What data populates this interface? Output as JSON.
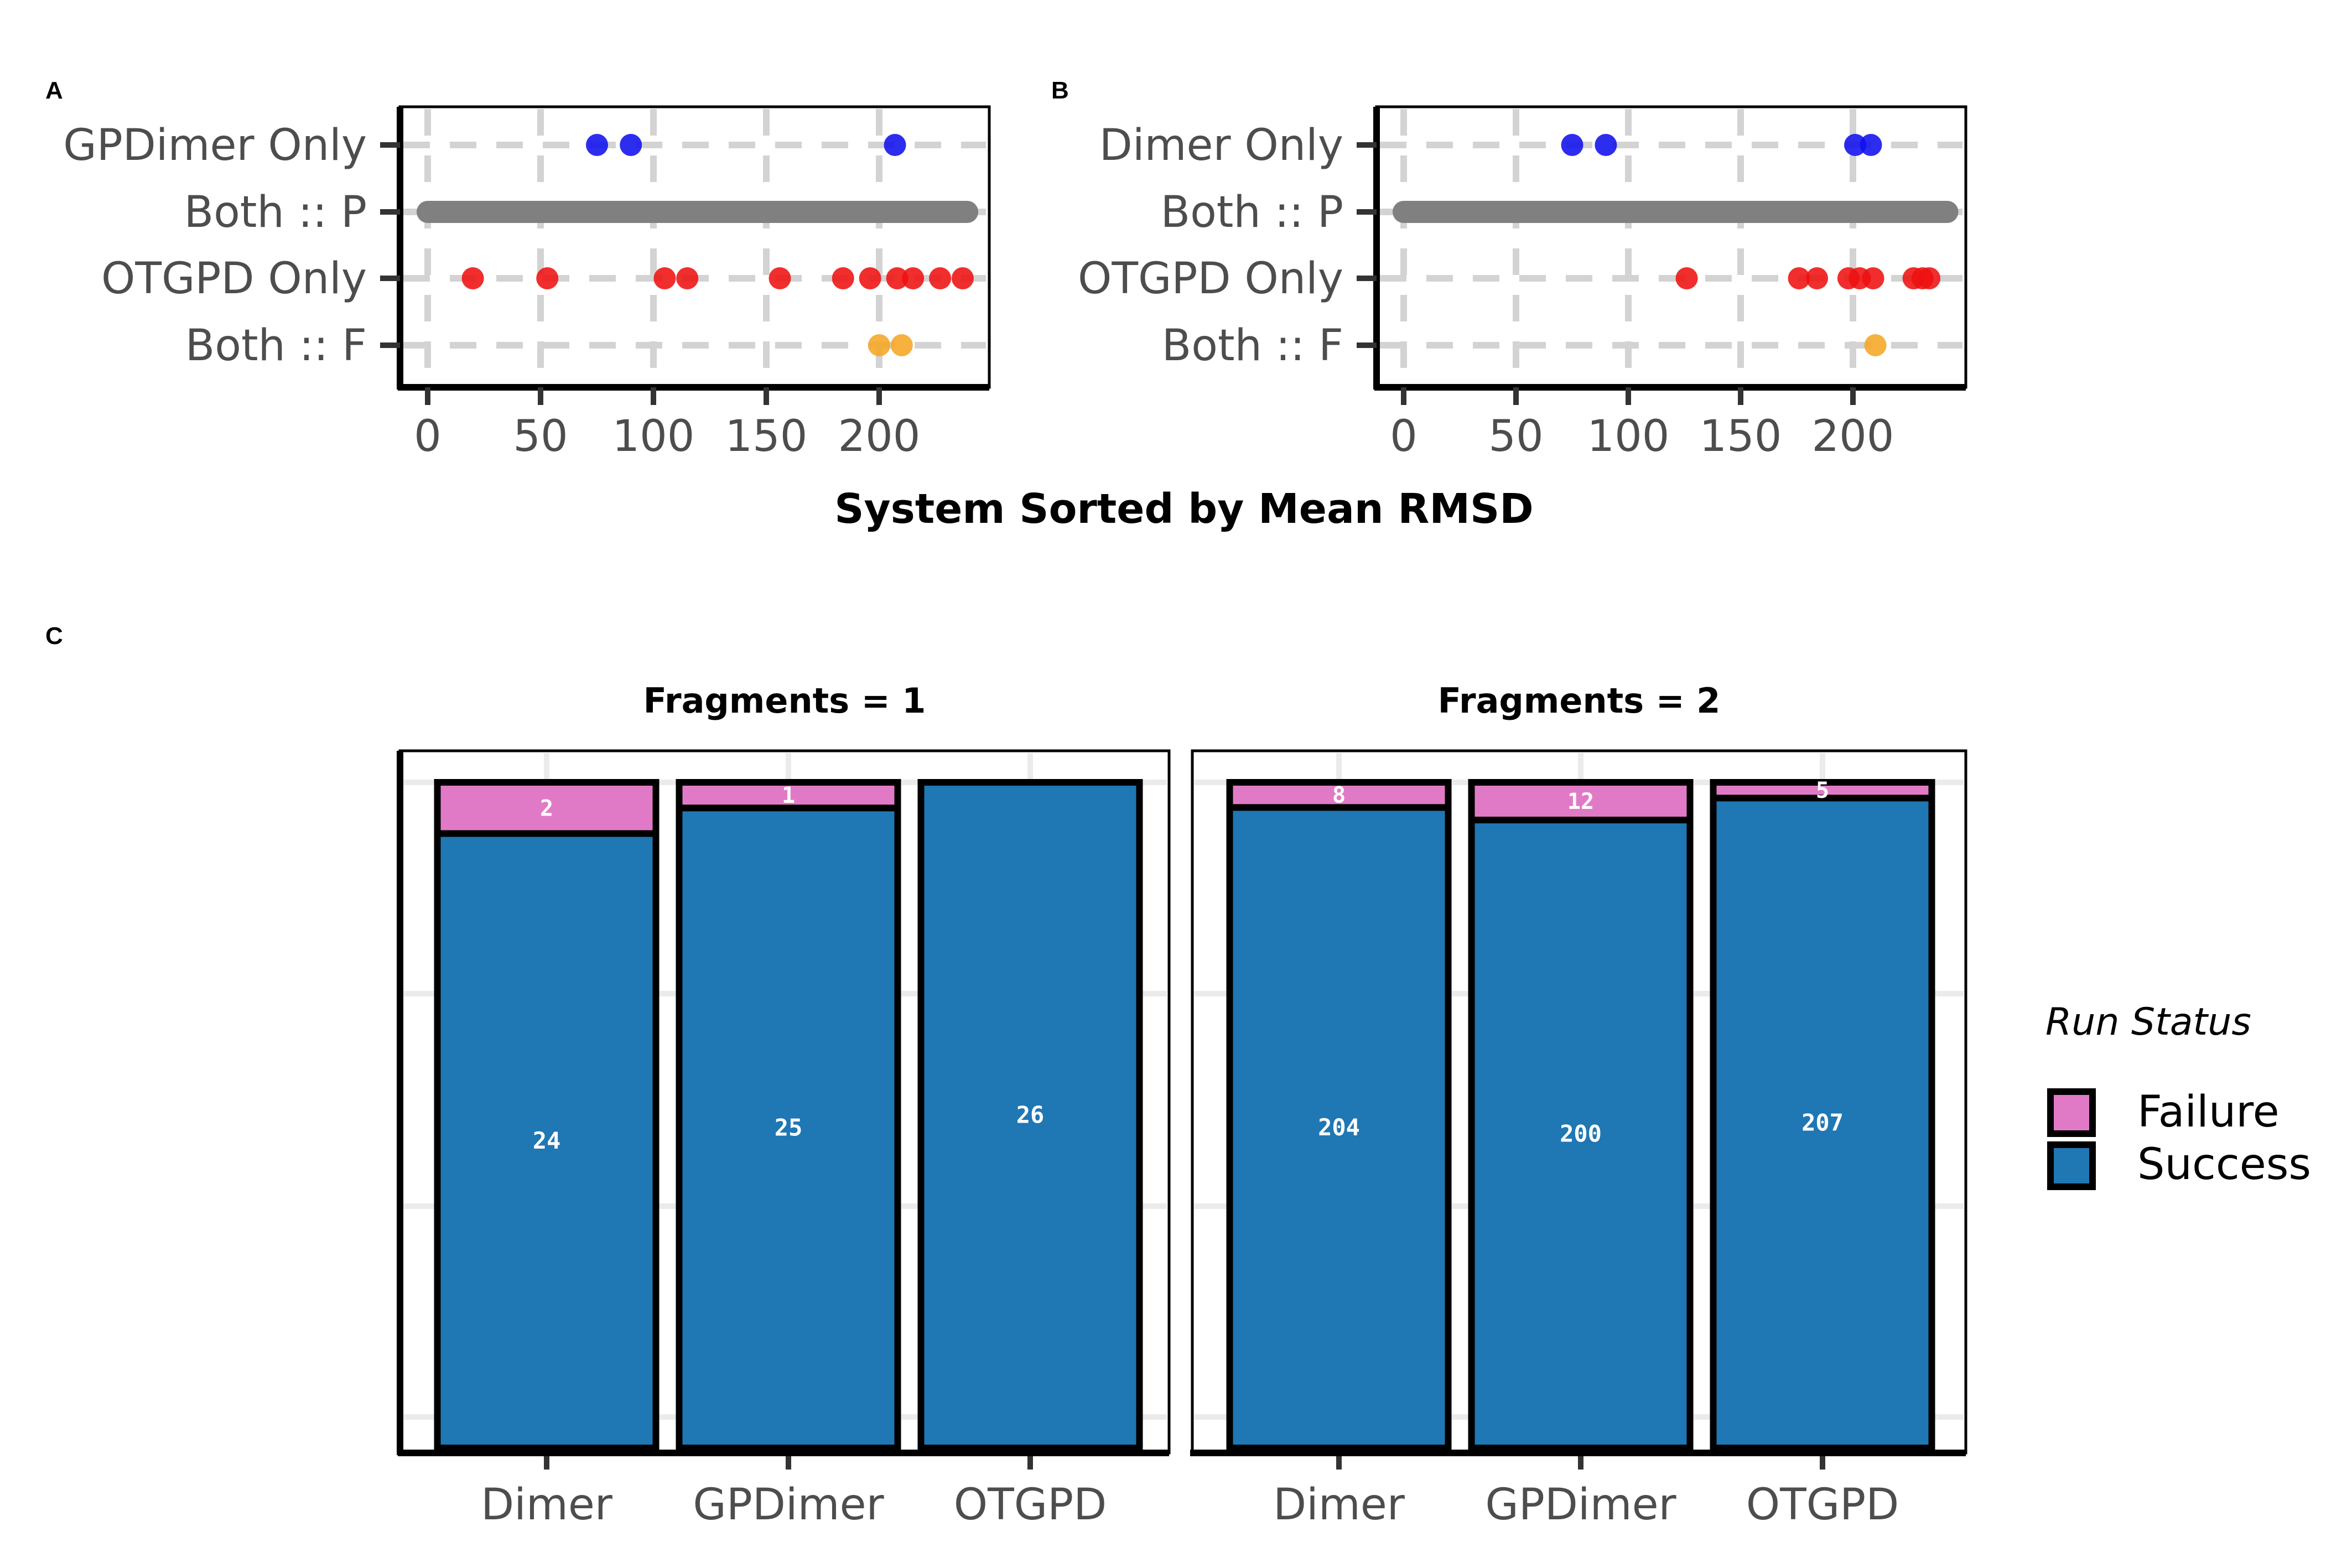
{
  "colors": {
    "dimer_only": "#1010ee",
    "both_pass": "#808080",
    "otgpd_only": "#ee1111",
    "both_fail": "#f5a623",
    "failure": "#e17ac6",
    "success": "#1f77b4",
    "grid": "#d3d3d3"
  },
  "chart_data": [
    {
      "type": "scatter",
      "panel": "A",
      "xlabel": "System Sorted by Mean RMSD",
      "xlim": [
        -10,
        248
      ],
      "xticks": [
        "0",
        "50",
        "100",
        "150",
        "200"
      ],
      "categories": [
        "GPDimer Only",
        "Both :: P",
        "OTGPD Only",
        "Both :: F"
      ],
      "series": [
        {
          "name": "GPDimer Only",
          "color": "dimer_only",
          "x": [
            75,
            90,
            207
          ]
        },
        {
          "name": "Both :: P",
          "color": "both_pass",
          "x_range": [
            0,
            239
          ]
        },
        {
          "name": "OTGPD Only",
          "color": "otgpd_only",
          "x": [
            20,
            53,
            105,
            115,
            156,
            184,
            196,
            208,
            215,
            227,
            237
          ]
        },
        {
          "name": "Both :: F",
          "color": "both_fail",
          "x": [
            200,
            210
          ]
        }
      ]
    },
    {
      "type": "scatter",
      "panel": "B",
      "xlabel": "System Sorted by Mean RMSD",
      "xlim": [
        -10,
        248
      ],
      "xticks": [
        "0",
        "50",
        "100",
        "150",
        "200"
      ],
      "categories": [
        "Dimer Only",
        "Both :: P",
        "OTGPD Only",
        "Both :: F"
      ],
      "series": [
        {
          "name": "Dimer Only",
          "color": "dimer_only",
          "x": [
            75,
            90,
            201,
            208
          ]
        },
        {
          "name": "Both :: P",
          "color": "both_pass",
          "x_range": [
            0,
            242
          ]
        },
        {
          "name": "OTGPD Only",
          "color": "otgpd_only",
          "x": [
            126,
            176,
            184,
            198,
            203,
            209,
            227,
            231,
            234
          ]
        },
        {
          "name": "Both :: F",
          "color": "both_fail",
          "x": [
            210
          ]
        }
      ]
    },
    {
      "type": "bar",
      "panel": "C",
      "stacked": true,
      "normalized": true,
      "legend_title": "Run Status",
      "legend": [
        {
          "name": "Failure",
          "color": "failure"
        },
        {
          "name": "Success",
          "color": "success"
        }
      ],
      "facets": [
        {
          "title": "Fragments = 1",
          "categories": [
            "Dimer",
            "GPDimer",
            "OTGPD"
          ],
          "series": [
            {
              "name": "Failure",
              "values": [
                2,
                1,
                0
              ]
            },
            {
              "name": "Success",
              "values": [
                24,
                25,
                26
              ]
            }
          ]
        },
        {
          "title": "Fragments = 2",
          "categories": [
            "Dimer",
            "GPDimer",
            "OTGPD"
          ],
          "series": [
            {
              "name": "Failure",
              "values": [
                8,
                12,
                5
              ]
            },
            {
              "name": "Success",
              "values": [
                204,
                200,
                207
              ]
            }
          ]
        }
      ]
    }
  ],
  "texts": {
    "panel_a": "A",
    "panel_b": "B",
    "panel_c": "C",
    "shared_xlabel": "System Sorted by Mean RMSD",
    "legend_title": "Run Status",
    "legend_failure": "Failure",
    "legend_success": "Success"
  }
}
